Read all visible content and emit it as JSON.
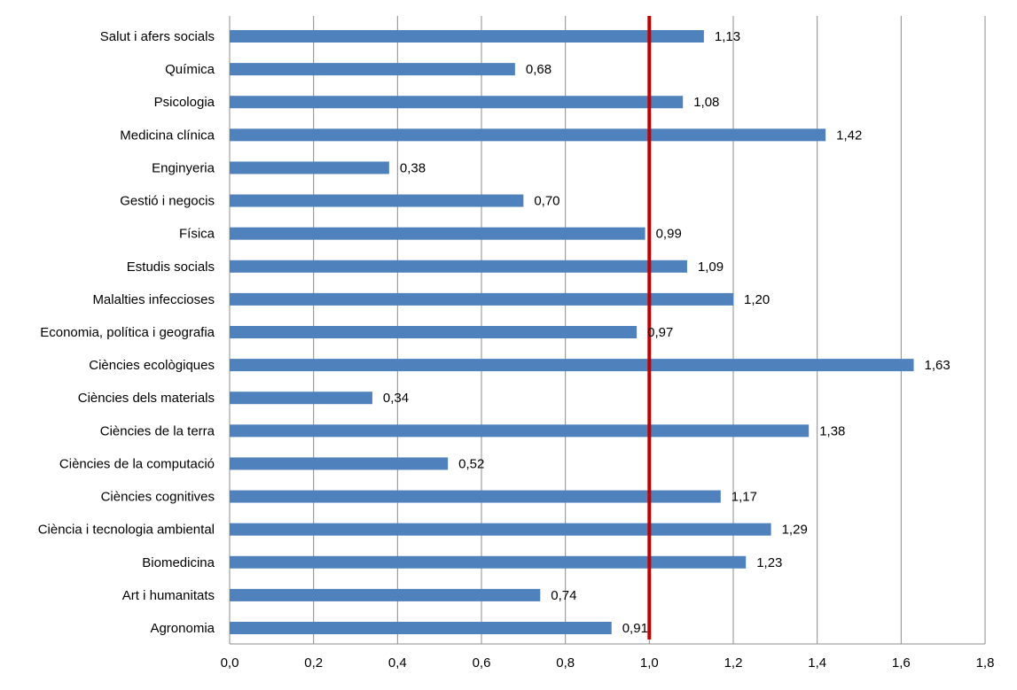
{
  "chart_data": {
    "type": "bar",
    "orientation": "horizontal",
    "title": "",
    "xlabel": "",
    "ylabel": "",
    "xlim": [
      0,
      1.8
    ],
    "x_ticks": [
      "0,0",
      "0,2",
      "0,4",
      "0,6",
      "0,8",
      "1,0",
      "1,2",
      "1,4",
      "1,6",
      "1,8"
    ],
    "x_tick_values": [
      0,
      0.2,
      0.4,
      0.6,
      0.8,
      1.0,
      1.2,
      1.4,
      1.6,
      1.8
    ],
    "grid": "vertical",
    "reference_line": {
      "value": 1.0,
      "color": "#C00000"
    },
    "bar_color": "#4F81BD",
    "categories": [
      "Salut i afers socials",
      "Química",
      "Psicologia",
      "Medicina clínica",
      "Enginyeria",
      "Gestió i negocis",
      "Física",
      "Estudis socials",
      "Malalties infeccioses",
      "Economia, política i geografia",
      "Ciències ecològiques",
      "Ciències dels materials",
      "Ciències de la terra",
      "Ciències de la computació",
      "Ciències cognitives",
      "Ciència i tecnologia ambiental",
      "Biomedicina",
      "Art i humanitats",
      "Agronomia"
    ],
    "values": [
      1.13,
      0.68,
      1.08,
      1.42,
      0.38,
      0.7,
      0.99,
      1.09,
      1.2,
      0.97,
      1.63,
      0.34,
      1.38,
      0.52,
      1.17,
      1.29,
      1.23,
      0.74,
      0.91
    ],
    "data_labels": [
      "1,13",
      "0,68",
      "1,08",
      "1,42",
      "0,38",
      "0,70",
      "0,99",
      "1,09",
      "1,20",
      "0,97",
      "1,63",
      "0,34",
      "1,38",
      "0,52",
      "1,17",
      "1,29",
      "1,23",
      "0,74",
      "0,91"
    ]
  }
}
